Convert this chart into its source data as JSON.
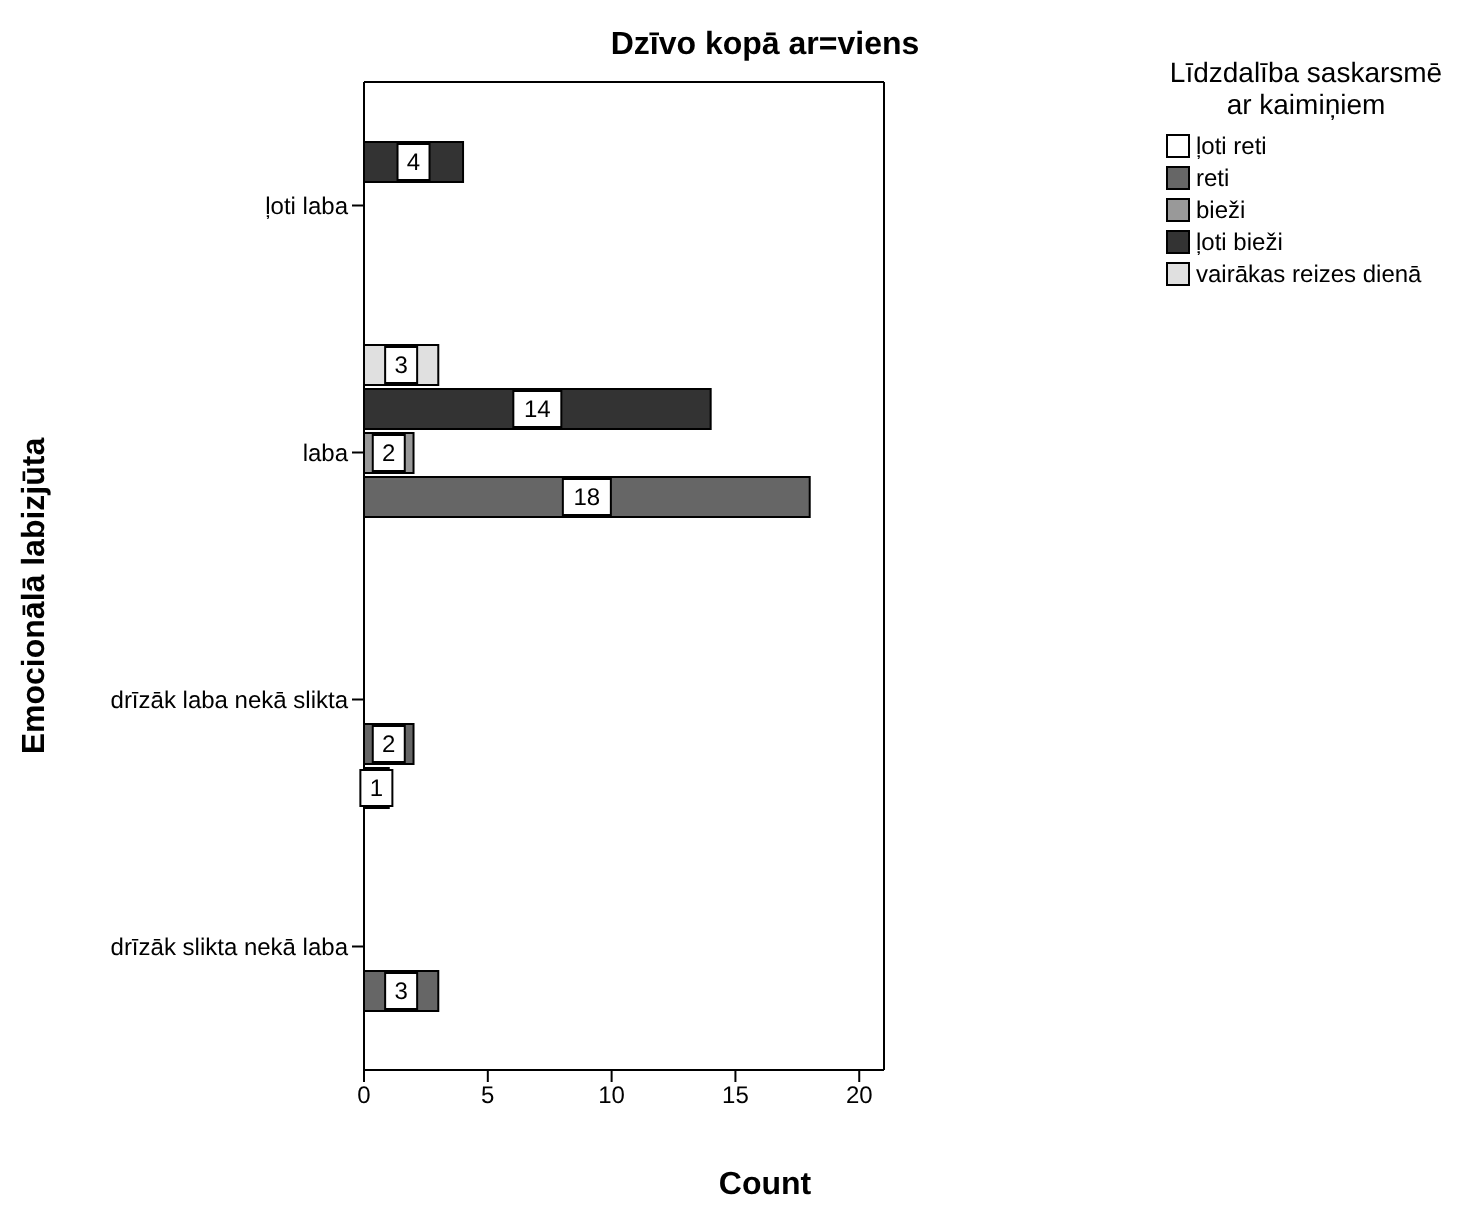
{
  "chart_data": {
    "type": "bar",
    "orientation": "horizontal",
    "title": "Dzīvo kopā ar=viens",
    "xlabel": "Count",
    "ylabel": "Emocionālā labizjūta",
    "legend_title": "Līdzdalība saskarsmē ar kaimiņiem",
    "categories": [
      "ļoti laba",
      "laba",
      "drīzāk laba nekā slikta",
      "drīzāk slikta nekā laba"
    ],
    "series": [
      {
        "name": "ļoti reti",
        "color": "#ffffff",
        "values": [
          null,
          null,
          1,
          null
        ]
      },
      {
        "name": "reti",
        "color": "#666666",
        "values": [
          null,
          18,
          2,
          3
        ]
      },
      {
        "name": "bieži",
        "color": "#999999",
        "values": [
          null,
          2,
          null,
          null
        ]
      },
      {
        "name": "ļoti bieži",
        "color": "#333333",
        "values": [
          4,
          14,
          null,
          null
        ]
      },
      {
        "name": "vairākas reizes dienā",
        "color": "#e0e0e0",
        "values": [
          null,
          3,
          null,
          null
        ]
      }
    ],
    "xlim": [
      0,
      21
    ],
    "xticks": [
      0,
      5,
      10,
      15,
      20
    ],
    "data_labels": true,
    "legend": "top right",
    "grid": false
  }
}
